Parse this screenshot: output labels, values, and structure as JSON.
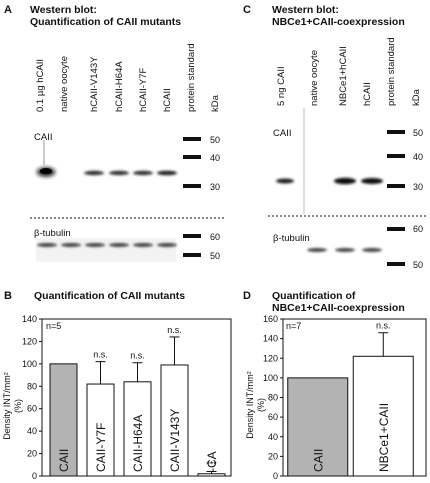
{
  "panelA": {
    "letter": "A",
    "title_line1": "Western blot:",
    "title_line2": "Quantification of CAII mutants",
    "lanes": [
      "0.1 µg hCAII",
      "native oocyte",
      "hCAII-V143Y",
      "hCAII-H64A",
      "hCAII-Y7F",
      "hCAII",
      "protein standard",
      "kDa"
    ],
    "top_label": "CAII",
    "bottom_label": "β-tubulin",
    "markers_top": [
      "50",
      "40",
      "30"
    ],
    "markers_bottom": [
      "60",
      "50"
    ]
  },
  "panelB": {
    "letter": "B",
    "title": "Quantification of CAII mutants",
    "n_label": "n=5",
    "ylabel_line1": "Density INT/mm²",
    "ylabel_line2": "(%)",
    "chart_data": {
      "type": "bar",
      "categories": [
        "CAII",
        "CAII-Y7F",
        "CAII-H64A",
        "CAII-V143Y",
        "-CA"
      ],
      "values": [
        100,
        82,
        84,
        99,
        2
      ],
      "errors": [
        0,
        20,
        17,
        25,
        2
      ],
      "significance": [
        "",
        "n.s.",
        "n.s.",
        "n.s.",
        "***"
      ],
      "colors": [
        "#b3b3b3",
        "#ffffff",
        "#ffffff",
        "#ffffff",
        "#ffffff"
      ],
      "ylim": [
        0,
        140
      ],
      "yticks": [
        "0",
        "20",
        "40",
        "60",
        "80",
        "100",
        "120",
        "140"
      ]
    }
  },
  "panelC": {
    "letter": "C",
    "title_line1": "Western blot:",
    "title_line2": "NBCe1+CAII-coexpression",
    "lanes": [
      "5 ng CAII",
      "native oocyte",
      "NBCe1+hCAII",
      "hCAII",
      "protein standard",
      "kDa"
    ],
    "top_label": "CAII",
    "bottom_label": "β-tubulin",
    "markers_top": [
      "50",
      "40",
      "30"
    ],
    "markers_bottom": [
      "60",
      "50"
    ]
  },
  "panelD": {
    "letter": "D",
    "title_line1": "Quantification of",
    "title_line2": "NBCe1+CAII-coexpression",
    "n_label": "n=7",
    "ylabel_line1": "Density INT/mm²",
    "ylabel_line2": "(%)",
    "chart_data": {
      "type": "bar",
      "categories": [
        "CAII",
        "NBCe1+CAII"
      ],
      "values": [
        100,
        122
      ],
      "errors": [
        0,
        24
      ],
      "significance": [
        "",
        "n.s."
      ],
      "colors": [
        "#b3b3b3",
        "#ffffff"
      ],
      "ylim": [
        0,
        160
      ],
      "yticks": [
        "0",
        "20",
        "40",
        "60",
        "80",
        "100",
        "120",
        "140",
        "160"
      ]
    }
  }
}
